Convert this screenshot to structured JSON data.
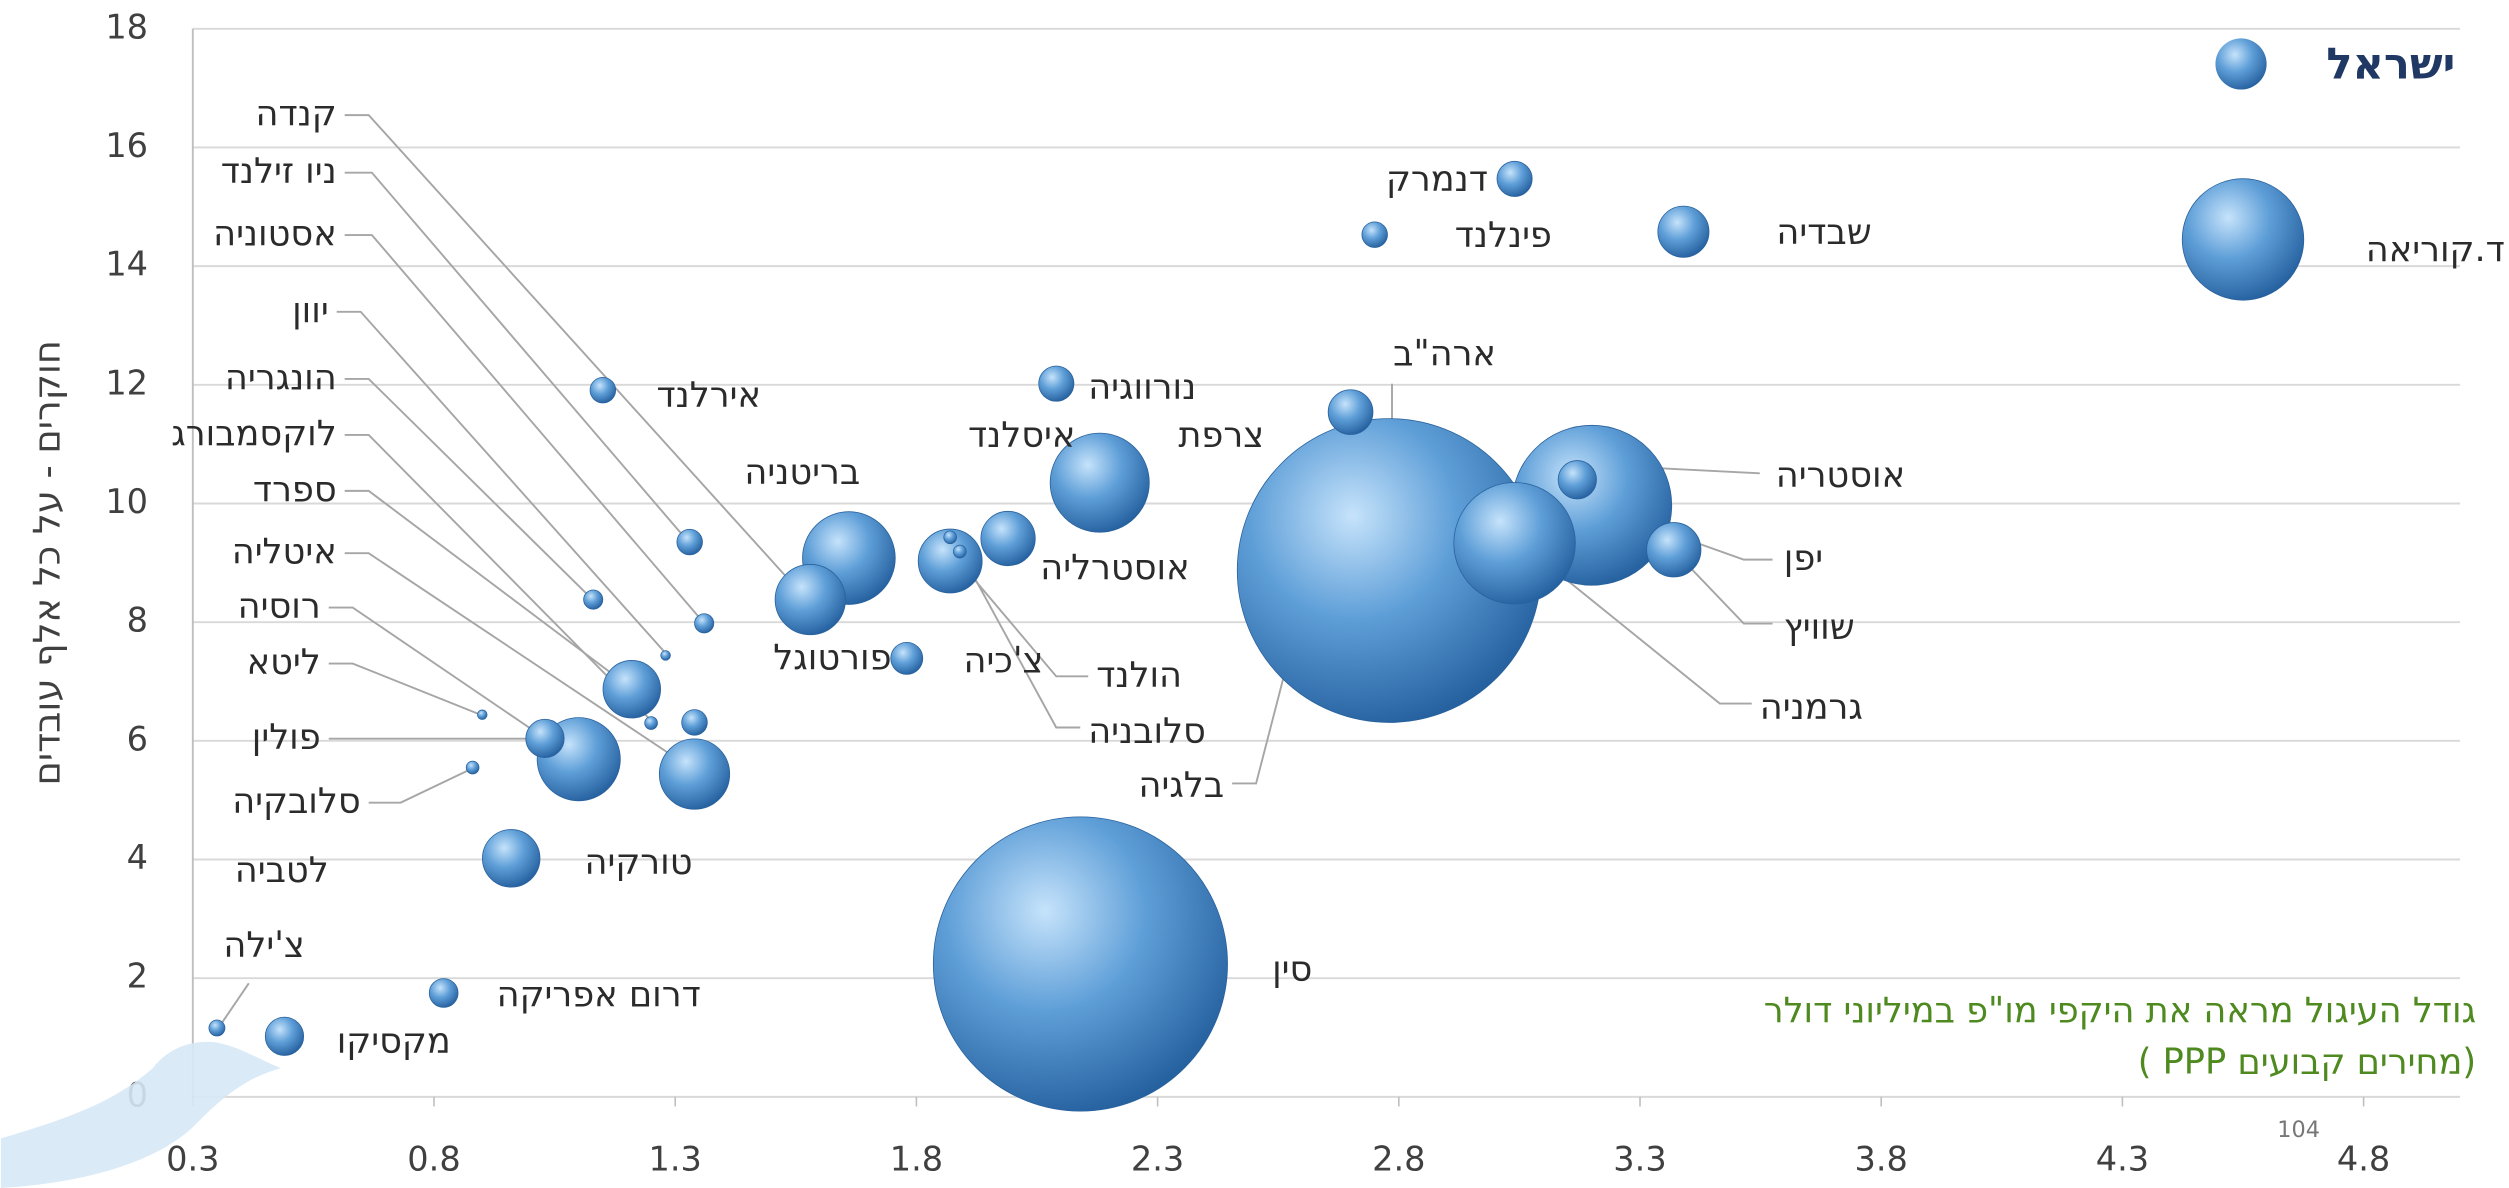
{
  "chart_data": {
    "type": "bubble",
    "y_axis_label": "חוקרים - על כל אלף עובדים",
    "legend_label": "ישראל",
    "annotation": [
      "גודל העיגול מראה את היקפי מו\"פ במיליוני דולר",
      "(מחירים קבועים PPP )"
    ],
    "page_number": "104",
    "color": "#3a78b8",
    "grid": true,
    "xlim": [
      0.3,
      5.0
    ],
    "ylim": [
      0,
      18
    ],
    "xticks": [
      0.3,
      0.8,
      1.3,
      1.8,
      2.3,
      2.8,
      3.3,
      3.8,
      4.3,
      4.8
    ],
    "yticks": [
      0,
      2,
      4,
      6,
      8,
      10,
      12,
      14,
      16,
      18
    ],
    "categories": [
      "קנדה",
      "ניו זילנד",
      "אסטוניה",
      "יוון",
      "הונגריה",
      "לוקסמבורג",
      "ספרד",
      "איטליה",
      "רוסיה",
      "ליטא",
      "פולין",
      "סלובקיה",
      "לטביה",
      "צ'ילה",
      "טורקיה",
      "דרום אפריקה",
      "מקסיקו",
      "אירלנד",
      "בריטניה",
      "פורטוגל",
      "נורווגיה",
      "איסלנד",
      "צרפת",
      "אוסטרליה",
      "צ'כיה",
      "הולנד",
      "סלובניה",
      "בלגיה",
      "ארה\"ב",
      "דנמרק",
      "פינלנד",
      "שבדיה",
      "ד.קוריאה",
      "אוסטריה",
      "יפן",
      "שוויץ",
      "גרמניה",
      "סין"
    ],
    "x": [
      1.58,
      1.33,
      1.36,
      1.28,
      1.13,
      1.25,
      1.21,
      1.34,
      1.1,
      0.9,
      1.03,
      0.88,
      null,
      0.35,
      0.96,
      0.82,
      0.49,
      1.15,
      1.66,
      1.78,
      2.09,
      1.87,
      2.18,
      1.99,
      1.34,
      1.87,
      1.89,
      2.7,
      2.78,
      3.04,
      2.75,
      3.39,
      4.55,
      3.17,
      3.2,
      3.37,
      3.04,
      2.14
    ],
    "values": [
      8.38,
      9.35,
      7.98,
      7.44,
      8.38,
      6.3,
      6.87,
      5.44,
      5.69,
      6.44,
      6.04,
      5.55,
      null,
      1.16,
      4.02,
      1.75,
      1.02,
      11.91,
      9.08,
      7.39,
      12.02,
      9.43,
      10.35,
      9.41,
      6.31,
      9.03,
      9.19,
      11.54,
      8.87,
      15.47,
      14.53,
      14.58,
      14.45,
      10.4,
      9.97,
      9.22,
      9.33,
      2.24
    ],
    "sizes": [
      24200,
      3200,
      1800,
      450,
      1800,
      800,
      16200,
      24200,
      33800,
      450,
      7200,
      800,
      null,
      1250,
      16200,
      4050,
      7200,
      3200,
      42050,
      5000,
      6050,
      800,
      48050,
      14450,
      3200,
      20000,
      800,
      9800,
      451250,
      6050,
      3200,
      12800,
      72200,
      7200,
      125000,
      14450,
      72200,
      423200
    ]
  }
}
